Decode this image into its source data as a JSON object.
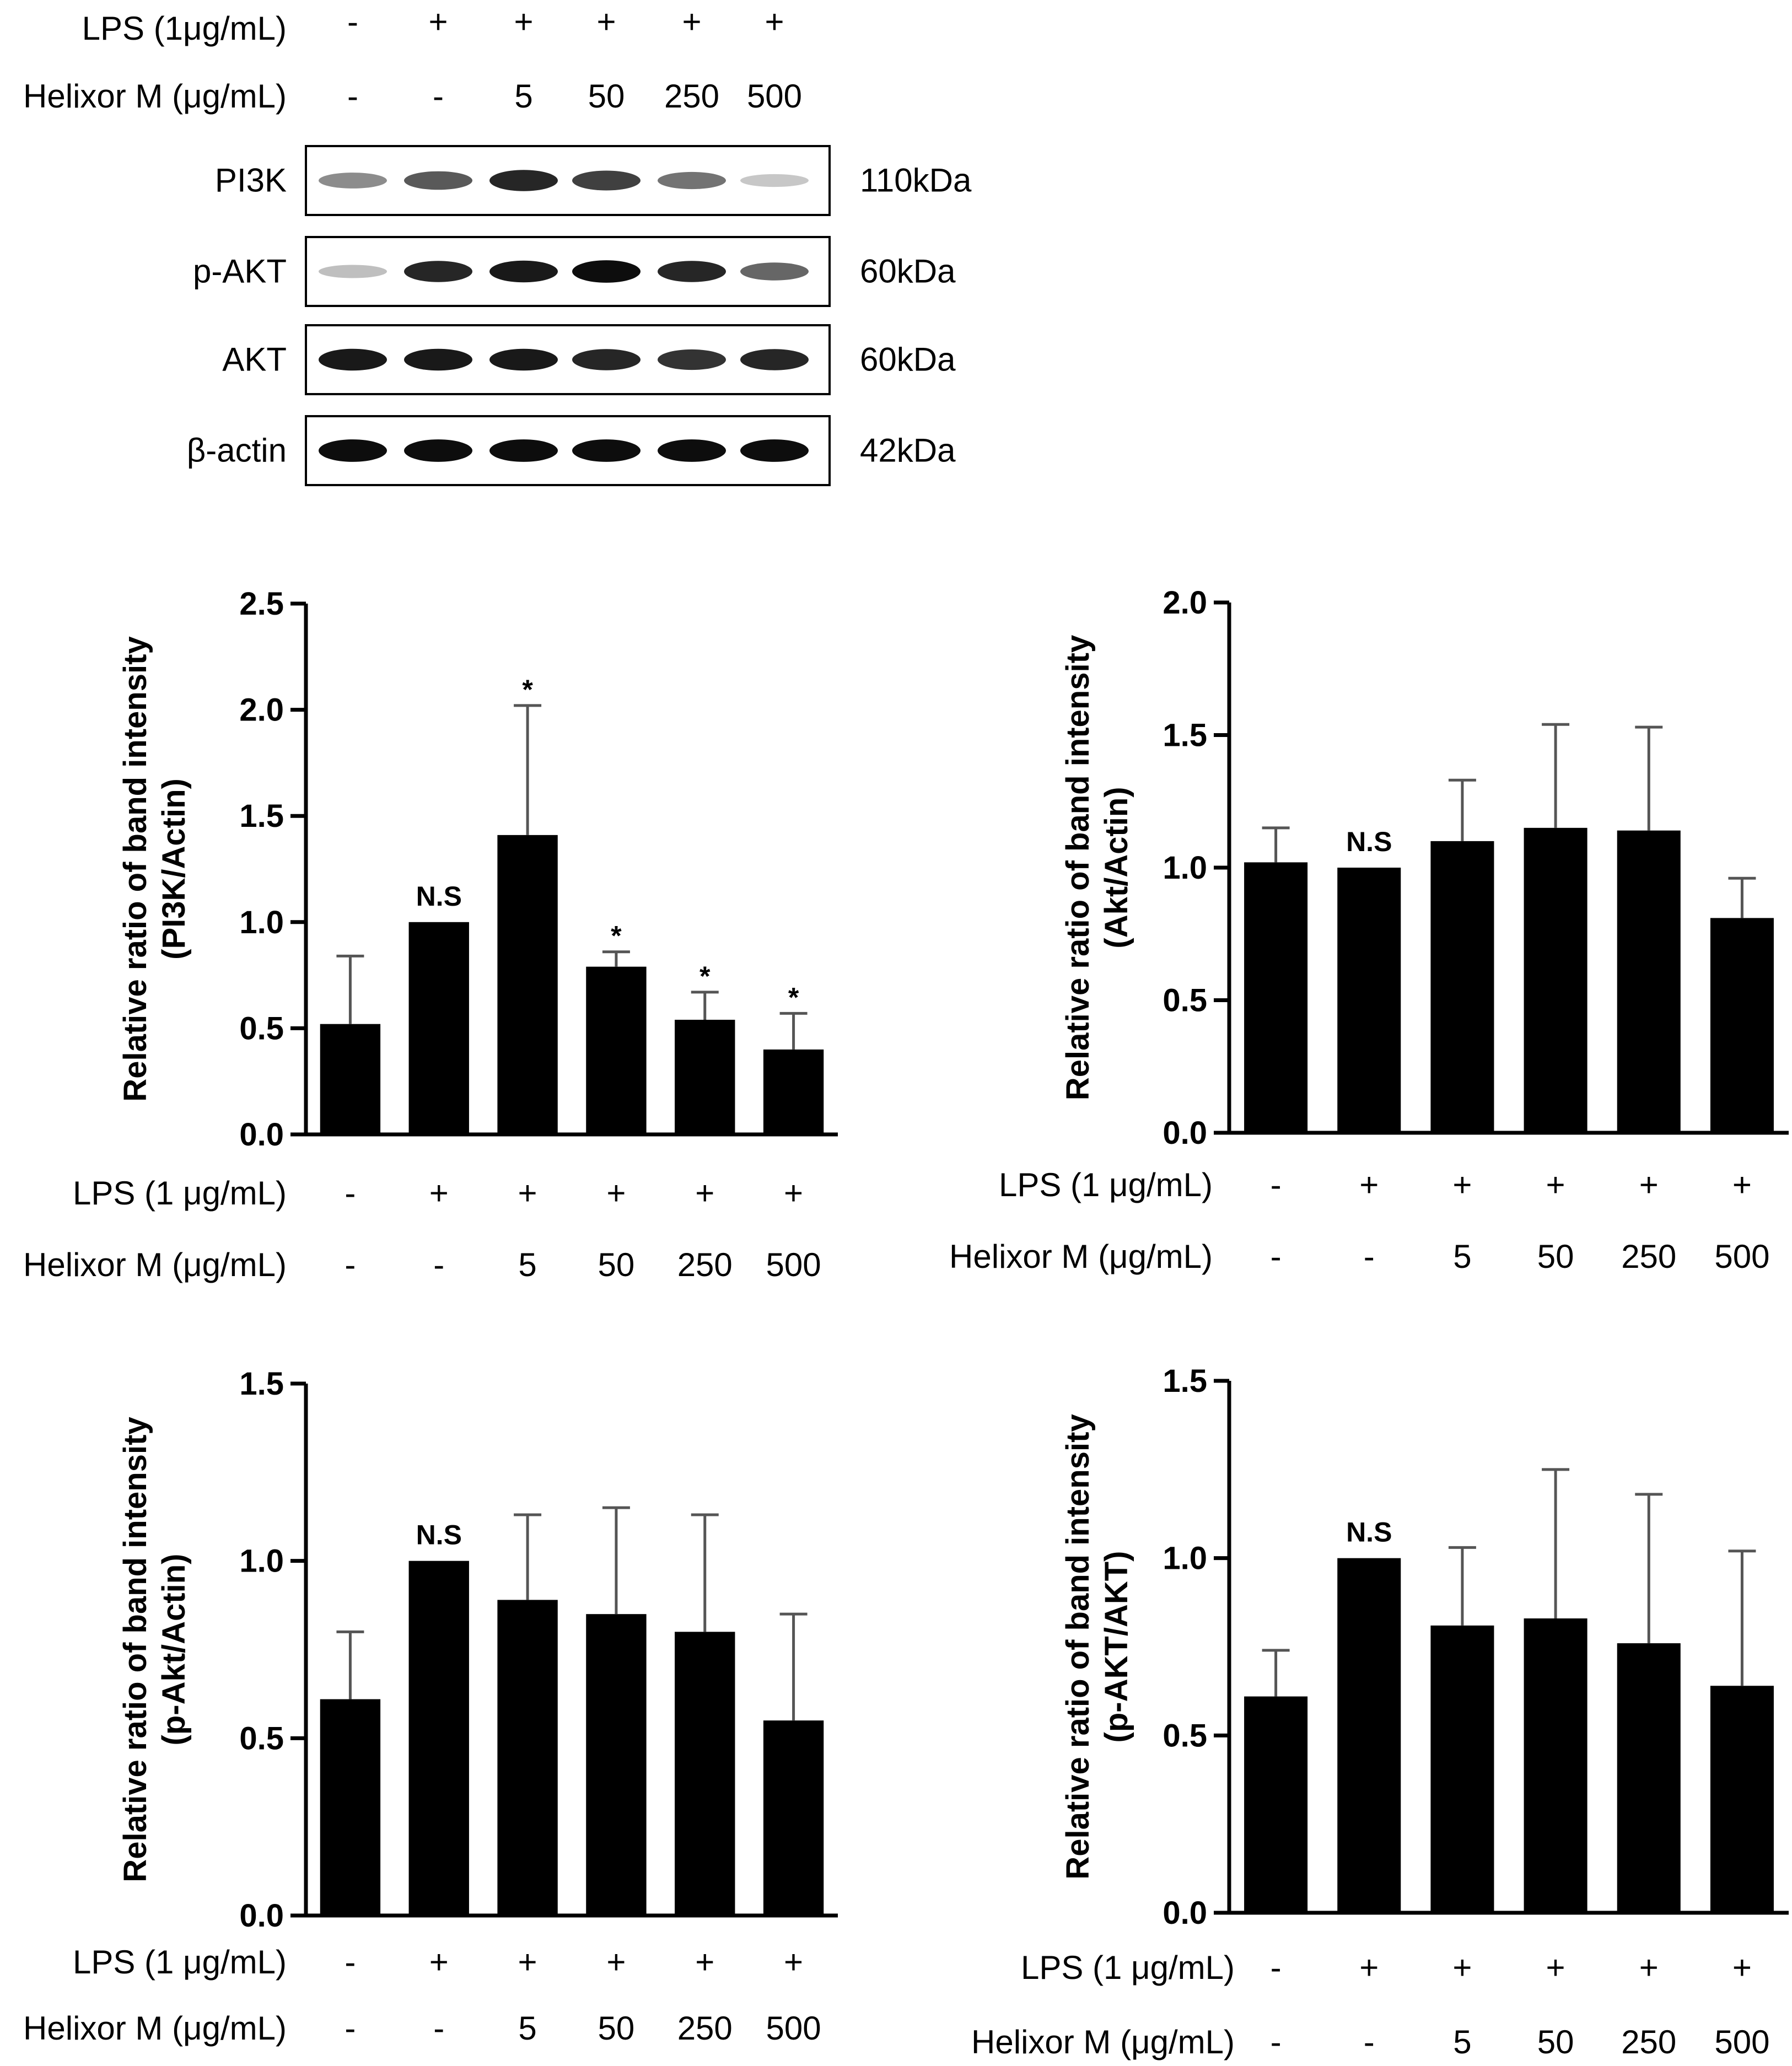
{
  "blot": {
    "lps_label": "LPS (1μg/mL)",
    "lps_values": [
      "-",
      "+",
      "+",
      "+",
      "+",
      "+"
    ],
    "helixor_label": "Helixor M (μg/mL)",
    "helixor_values": [
      "-",
      "-",
      "5",
      "50",
      "250",
      "500"
    ],
    "bands": [
      {
        "name": "PI3K",
        "mw": "110kDa",
        "intensity": [
          0.45,
          0.65,
          0.85,
          0.75,
          0.55,
          0.22
        ]
      },
      {
        "name": "p-AKT",
        "mw": "60kDa",
        "intensity": [
          0.25,
          0.85,
          0.9,
          0.95,
          0.85,
          0.6
        ]
      },
      {
        "name": "AKT",
        "mw": "60kDa",
        "intensity": [
          0.9,
          0.9,
          0.9,
          0.85,
          0.8,
          0.85
        ]
      },
      {
        "name": "β-actin",
        "mw": "42kDa",
        "intensity": [
          0.95,
          0.95,
          0.95,
          0.95,
          0.95,
          0.95
        ]
      }
    ]
  },
  "conditions": {
    "lps_label": "LPS (1 μg/mL)",
    "lps_values": [
      "-",
      "+",
      "+",
      "+",
      "+",
      "+"
    ],
    "helixor_label": "Helixor M (μg/mL)",
    "helixor_values": [
      "-",
      "-",
      "5",
      "50",
      "250",
      "500"
    ]
  },
  "chart_data": [
    {
      "type": "bar",
      "ylabel_line1": "Relative ratio of band intensity",
      "ylabel_line2": "(PI3K/Actin)",
      "ylim": [
        0,
        2.5
      ],
      "yticks": [
        "0.0",
        "0.5",
        "1.0",
        "1.5",
        "2.0",
        "2.5"
      ],
      "values": [
        0.52,
        1.0,
        1.41,
        0.79,
        0.54,
        0.4
      ],
      "errors": [
        0.32,
        0.0,
        0.61,
        0.07,
        0.13,
        0.17
      ],
      "annotations": [
        "",
        "N.S",
        "*",
        "*",
        "*",
        "*"
      ]
    },
    {
      "type": "bar",
      "ylabel_line1": "Relative ratio of band intensity",
      "ylabel_line2": "(Akt/Actin)",
      "ylim": [
        0,
        2.0
      ],
      "yticks": [
        "0.0",
        "0.5",
        "1.0",
        "1.5",
        "2.0"
      ],
      "values": [
        1.02,
        1.0,
        1.1,
        1.15,
        1.14,
        0.81
      ],
      "errors": [
        0.13,
        0.0,
        0.23,
        0.39,
        0.39,
        0.15
      ],
      "annotations": [
        "",
        "N.S",
        "",
        "",
        "",
        ""
      ]
    },
    {
      "type": "bar",
      "ylabel_line1": "Relative ratio of band intensity",
      "ylabel_line2": "(p-Akt/Actin)",
      "ylim": [
        0,
        1.5
      ],
      "yticks": [
        "0.0",
        "0.5",
        "1.0",
        "1.5"
      ],
      "values": [
        0.61,
        1.0,
        0.89,
        0.85,
        0.8,
        0.55
      ],
      "errors": [
        0.19,
        0.0,
        0.24,
        0.3,
        0.33,
        0.3
      ],
      "annotations": [
        "",
        "N.S",
        "",
        "",
        "",
        ""
      ]
    },
    {
      "type": "bar",
      "ylabel_line1": "Relative ratio of band intensity",
      "ylabel_line2": "(p-AKT/AKT)",
      "ylim": [
        0,
        1.5
      ],
      "yticks": [
        "0.0",
        "0.5",
        "1.0",
        "1.5"
      ],
      "values": [
        0.61,
        1.0,
        0.81,
        0.83,
        0.76,
        0.64
      ],
      "errors": [
        0.13,
        0.0,
        0.22,
        0.42,
        0.42,
        0.38
      ],
      "annotations": [
        "",
        "N.S",
        "",
        "",
        "",
        ""
      ]
    }
  ]
}
